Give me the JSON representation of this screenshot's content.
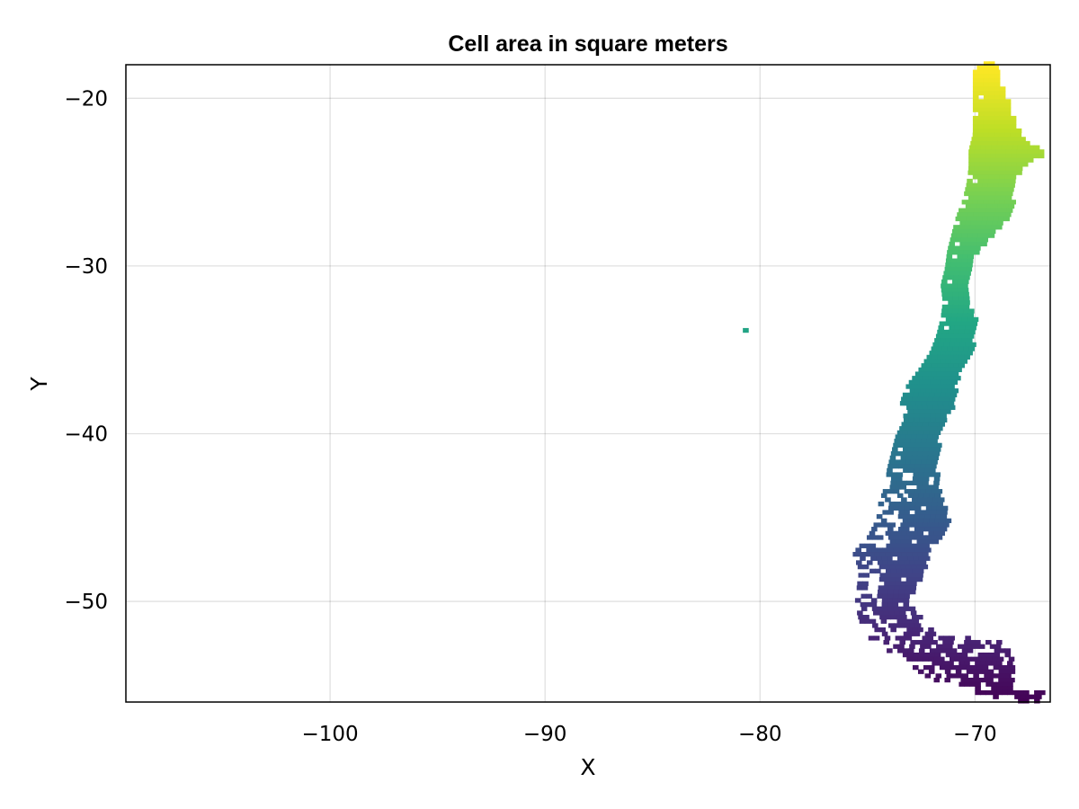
{
  "chart_data": {
    "type": "heatmap",
    "title": "Cell area in square meters",
    "xlabel": "X",
    "ylabel": "Y",
    "xlim": [
      -109.5,
      -66.5
    ],
    "ylim": [
      -56,
      -18
    ],
    "xticks": [
      -100,
      -90,
      -80,
      -70
    ],
    "yticks": [
      -20,
      -30,
      -40,
      -50
    ],
    "xtick_labels": [
      "−100",
      "−90",
      "−80",
      "−70"
    ],
    "ytick_labels": [
      "−20",
      "−30",
      "−40",
      "−50"
    ],
    "grid": true,
    "colormap": "viridis",
    "cell_size_deg": 0.25,
    "color_extent": [
      -56,
      -18
    ],
    "region_outline": {
      "east_edge": [
        [
          -17.8,
          -69.2
        ],
        [
          -18.2,
          -69.1
        ],
        [
          -19.0,
          -68.9
        ],
        [
          -20.0,
          -68.6
        ],
        [
          -21.0,
          -68.3
        ],
        [
          -22.0,
          -68.0
        ],
        [
          -22.5,
          -67.6
        ],
        [
          -23.0,
          -67.0
        ],
        [
          -23.3,
          -67.0
        ],
        [
          -23.7,
          -67.6
        ],
        [
          -24.5,
          -68.2
        ],
        [
          -25.5,
          -68.4
        ],
        [
          -26.5,
          -68.3
        ],
        [
          -27.2,
          -68.7
        ],
        [
          -28.0,
          -69.3
        ],
        [
          -29.0,
          -70.0
        ],
        [
          -30.0,
          -70.3
        ],
        [
          -31.0,
          -70.4
        ],
        [
          -32.0,
          -70.5
        ],
        [
          -33.0,
          -70.0
        ],
        [
          -34.0,
          -70.2
        ],
        [
          -35.0,
          -70.2
        ],
        [
          -36.0,
          -70.8
        ],
        [
          -37.0,
          -71.0
        ],
        [
          -38.0,
          -71.0
        ],
        [
          -39.0,
          -71.5
        ],
        [
          -40.0,
          -71.8
        ],
        [
          -41.0,
          -71.7
        ],
        [
          -42.0,
          -71.9
        ],
        [
          -43.0,
          -71.7
        ],
        [
          -44.0,
          -71.6
        ],
        [
          -45.0,
          -71.3
        ],
        [
          -46.0,
          -71.6
        ],
        [
          -47.0,
          -72.2
        ],
        [
          -48.0,
          -72.4
        ],
        [
          -49.0,
          -72.9
        ],
        [
          -50.0,
          -73.2
        ],
        [
          -51.0,
          -72.5
        ],
        [
          -51.8,
          -72.0
        ],
        [
          -52.2,
          -69.2
        ],
        [
          -52.6,
          -68.4
        ],
        [
          -53.5,
          -68.4
        ],
        [
          -54.5,
          -68.4
        ],
        [
          -55.0,
          -68.5
        ],
        [
          -55.2,
          -67.0
        ],
        [
          -55.5,
          -66.7
        ],
        [
          -55.9,
          -67.3
        ]
      ],
      "west_edge": [
        [
          -17.8,
          -69.6
        ],
        [
          -18.2,
          -70.1
        ],
        [
          -19.0,
          -70.1
        ],
        [
          -20.0,
          -70.1
        ],
        [
          -21.0,
          -70.1
        ],
        [
          -22.0,
          -70.1
        ],
        [
          -23.0,
          -70.3
        ],
        [
          -24.0,
          -70.3
        ],
        [
          -25.0,
          -70.4
        ],
        [
          -26.0,
          -70.6
        ],
        [
          -27.0,
          -70.9
        ],
        [
          -28.0,
          -71.1
        ],
        [
          -29.0,
          -71.3
        ],
        [
          -30.0,
          -71.4
        ],
        [
          -31.0,
          -71.6
        ],
        [
          -32.0,
          -71.5
        ],
        [
          -33.0,
          -71.6
        ],
        [
          -34.0,
          -71.8
        ],
        [
          -35.0,
          -72.1
        ],
        [
          -36.0,
          -72.6
        ],
        [
          -37.0,
          -73.2
        ],
        [
          -38.0,
          -73.5
        ],
        [
          -39.0,
          -73.3
        ],
        [
          -40.0,
          -73.7
        ],
        [
          -41.0,
          -73.9
        ],
        [
          -42.0,
          -74.1
        ],
        [
          -43.0,
          -74.2
        ],
        [
          -44.0,
          -74.5
        ],
        [
          -45.0,
          -74.6
        ],
        [
          -46.0,
          -75.0
        ],
        [
          -47.0,
          -75.7
        ],
        [
          -48.0,
          -75.4
        ],
        [
          -49.0,
          -75.5
        ],
        [
          -50.0,
          -75.6
        ],
        [
          -51.0,
          -75.4
        ],
        [
          -52.0,
          -75.0
        ],
        [
          -53.0,
          -74.2
        ],
        [
          -53.7,
          -73.0
        ],
        [
          -54.2,
          -72.5
        ],
        [
          -54.8,
          -71.5
        ],
        [
          -55.3,
          -70.0
        ],
        [
          -55.6,
          -69.0
        ],
        [
          -55.9,
          -67.5
        ]
      ],
      "islands": [
        {
          "lat": -33.7,
          "lon": -80.8
        }
      ]
    }
  }
}
